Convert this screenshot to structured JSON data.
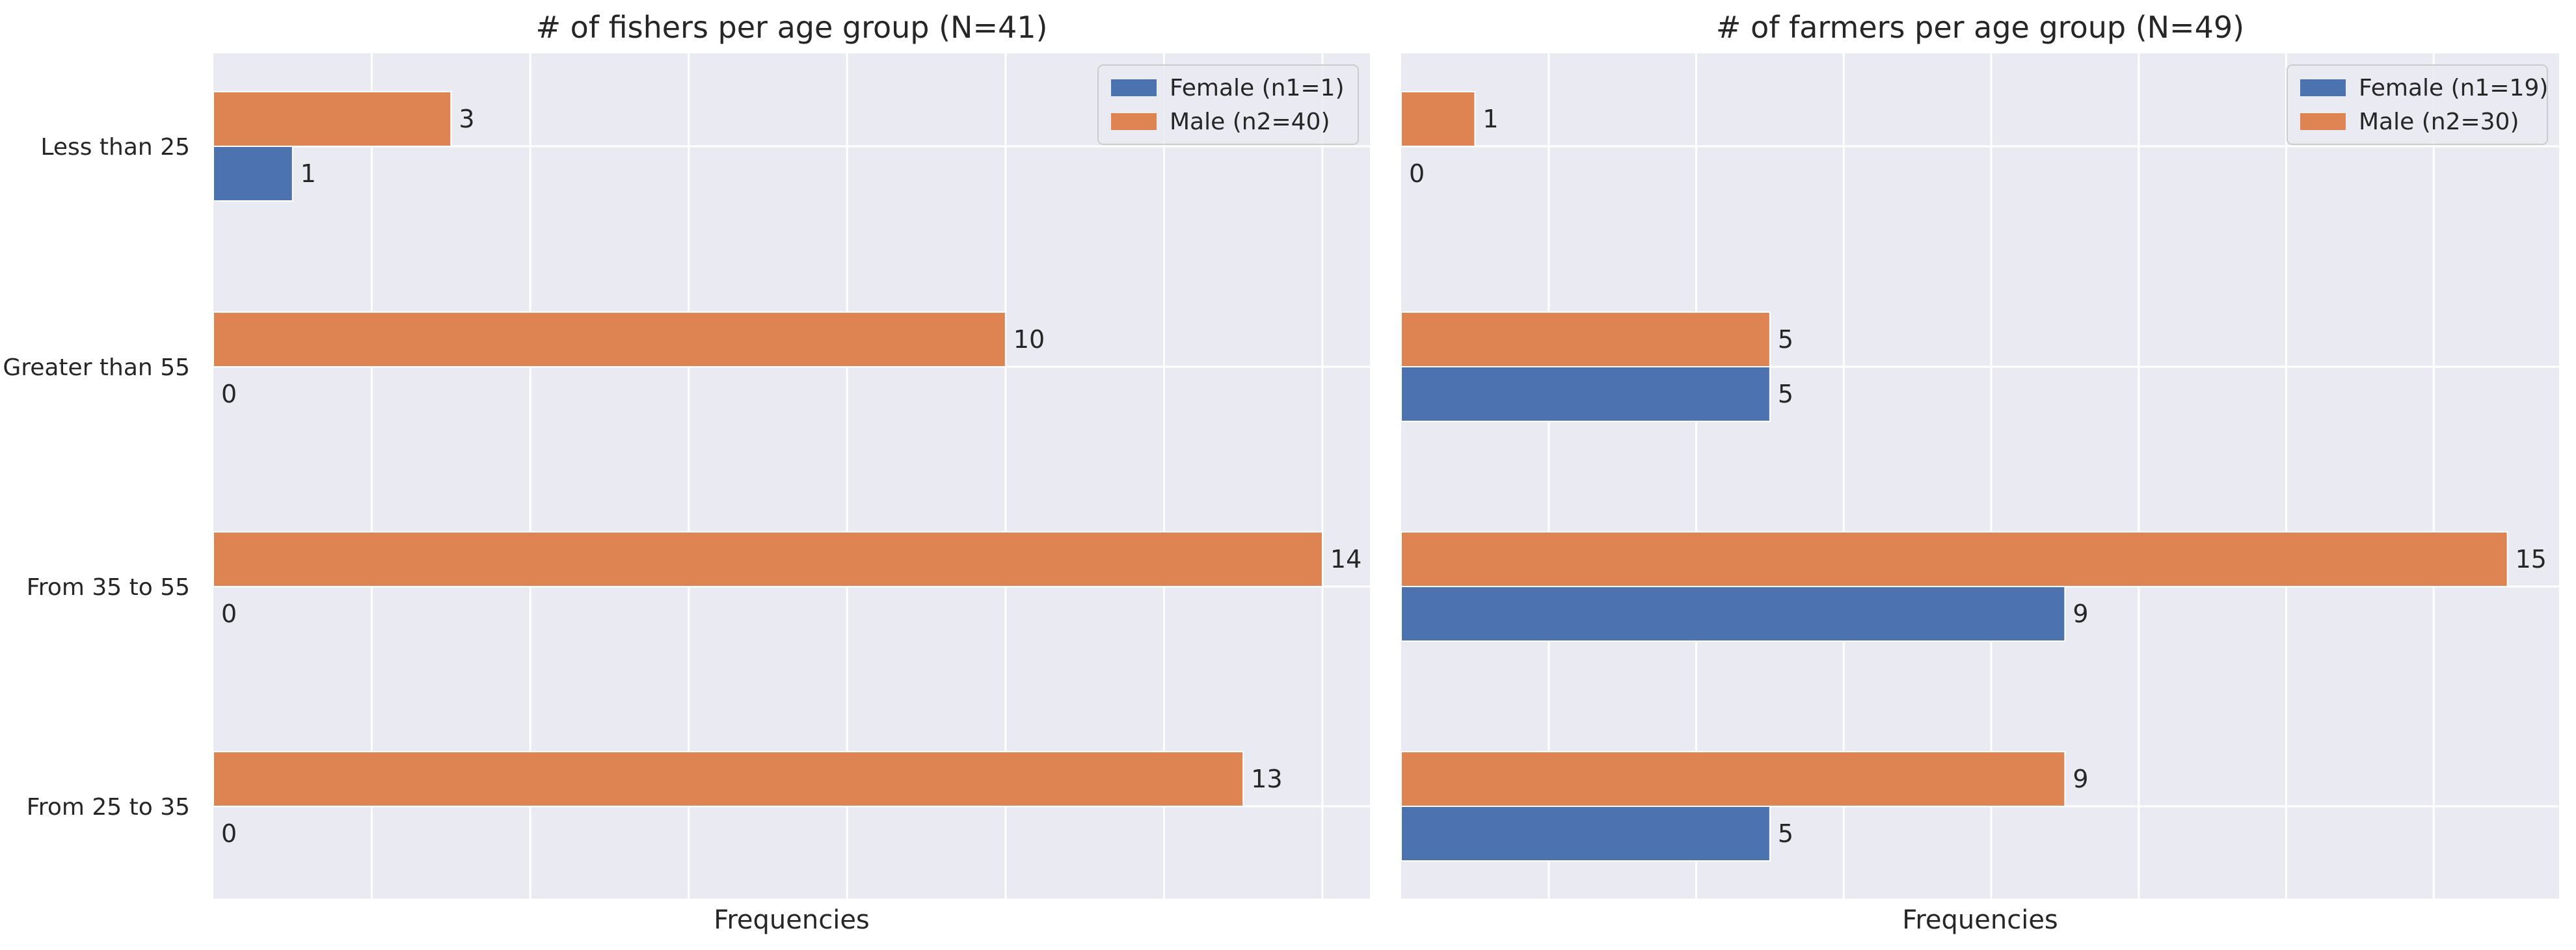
{
  "chart_data": [
    {
      "type": "bar",
      "orientation": "horizontal",
      "title": "# of fishers per age group (N=41)",
      "xlabel": "Frequencies",
      "ylabel": "",
      "categories": [
        "Less than 25",
        "Greater than 55",
        "From 35 to 55",
        "From 25 to 35"
      ],
      "series": [
        {
          "name": "Female (n1=1)",
          "color": "#4c72b0",
          "values": [
            1,
            0,
            0,
            0
          ]
        },
        {
          "name": "Male (n2=40)",
          "color": "#dd8452",
          "values": [
            3,
            10,
            14,
            13
          ]
        }
      ],
      "xlim": [
        0,
        14.6
      ],
      "x_tick_labels_visible": false,
      "grid": true,
      "legend_position": "top-right",
      "show_y_tick_labels": true
    },
    {
      "type": "bar",
      "orientation": "horizontal",
      "title": "# of farmers per age group (N=49)",
      "xlabel": "Frequencies",
      "ylabel": "",
      "categories": [
        "Less than 25",
        "Greater than 55",
        "From 35 to 55",
        "From 25 to 35"
      ],
      "series": [
        {
          "name": "Female (n1=19)",
          "color": "#4c72b0",
          "values": [
            0,
            5,
            9,
            5
          ]
        },
        {
          "name": "Male (n2=30)",
          "color": "#dd8452",
          "values": [
            1,
            5,
            15,
            9
          ]
        }
      ],
      "xlim": [
        0,
        15.7
      ],
      "x_tick_labels_visible": false,
      "grid": true,
      "legend_position": "top-right",
      "show_y_tick_labels": false
    }
  ]
}
